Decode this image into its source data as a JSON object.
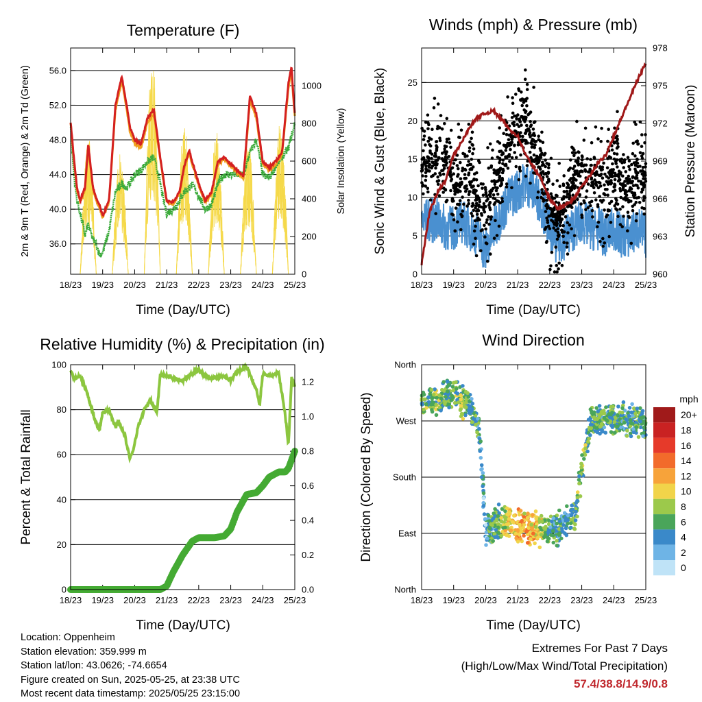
{
  "x_ticks": [
    "18/23",
    "19/23",
    "20/23",
    "21/23",
    "22/23",
    "23/23",
    "24/23",
    "25/23"
  ],
  "x_label": "Time (Day/UTC)",
  "colors": {
    "t2m": "#d42020",
    "t9m": "#f0a020",
    "td": "#3aaa3a",
    "solar": "#f5d94a",
    "wind": "#4a90d0",
    "gust": "#000000",
    "pressure": "#a01818",
    "rh": "#8cc63f",
    "precip": "#44aa33"
  },
  "chart_data": [
    {
      "type": "line",
      "id": "temp",
      "title": "Temperature (F)",
      "ylabel": "2m & 9m T (Red, Orange) & 2m Td (Green)",
      "y2label": "Solar Insolation (Yellow)",
      "ylim": [
        32.5,
        58.6
      ],
      "y_ticks": [
        "36.0",
        "40.0",
        "44.0",
        "48.0",
        "52.0",
        "56.0"
      ],
      "y2lim": [
        0,
        1200
      ],
      "y2_ticks": [
        "0",
        "200",
        "400",
        "600",
        "800",
        "1000"
      ],
      "grid": true,
      "x": [
        0,
        0.1,
        0.2,
        0.3,
        0.45,
        0.55,
        0.7,
        0.8,
        0.9,
        1.0,
        1.2,
        1.4,
        1.6,
        1.75,
        1.85,
        2.0,
        2.2,
        2.4,
        2.6,
        2.8,
        2.9,
        3.0,
        3.2,
        3.4,
        3.55,
        3.7,
        3.8,
        4.0,
        4.2,
        4.4,
        4.6,
        4.8,
        5.0,
        5.2,
        5.4,
        5.6,
        5.8,
        6.0,
        6.2,
        6.4,
        6.6,
        6.8,
        6.9,
        6.95,
        7.0
      ],
      "series": [
        {
          "name": "2m T",
          "values": [
            50.1,
            46.0,
            42.5,
            41.0,
            42.5,
            47.5,
            42.5,
            41.2,
            40.5,
            39.2,
            41.0,
            52.0,
            55.3,
            52.0,
            49.5,
            48.0,
            47.5,
            50.5,
            51.5,
            46.0,
            43.5,
            41.0,
            40.8,
            42.0,
            45.0,
            46.8,
            45.5,
            43.0,
            41.0,
            42.0,
            45.5,
            46.0,
            45.2,
            44.5,
            43.8,
            53.0,
            51.0,
            45.5,
            44.8,
            45.5,
            46.5,
            54.5,
            56.5,
            53.5,
            51.0
          ]
        },
        {
          "name": "9m T",
          "values": [
            50.0,
            45.8,
            42.2,
            40.8,
            42.2,
            47.0,
            42.3,
            41.0,
            40.2,
            39.0,
            40.8,
            51.5,
            54.8,
            51.5,
            49.0,
            47.6,
            47.1,
            50.0,
            51.0,
            45.7,
            43.2,
            40.8,
            40.6,
            41.8,
            44.7,
            46.5,
            45.2,
            42.8,
            40.8,
            41.8,
            45.2,
            45.8,
            45.0,
            44.3,
            43.6,
            52.5,
            50.6,
            45.2,
            44.5,
            45.2,
            46.2,
            54.0,
            56.0,
            53.0,
            50.8
          ]
        },
        {
          "name": "2m Td",
          "values": [
            49.5,
            44.0,
            41.0,
            39.5,
            37.0,
            38.2,
            36.5,
            36.0,
            34.8,
            35.0,
            37.5,
            42.0,
            43.0,
            42.5,
            43.0,
            44.0,
            44.5,
            45.5,
            46.0,
            43.0,
            41.0,
            39.5,
            40.0,
            41.0,
            42.0,
            42.5,
            42.8,
            41.5,
            40.0,
            40.5,
            43.0,
            44.0,
            44.0,
            44.0,
            44.0,
            46.5,
            48.0,
            44.0,
            43.5,
            45.0,
            46.0,
            47.0,
            48.5,
            49.0,
            50.0
          ]
        }
      ],
      "solar_days": [
        0,
        1,
        2,
        3,
        4,
        5,
        6
      ],
      "solar_peaks": [
        730,
        640,
        1180,
        800,
        760,
        720,
        820
      ]
    },
    {
      "type": "scatter",
      "id": "wind",
      "title": "Winds (mph) & Pressure (mb)",
      "ylabel": "Sonic Wind & Gust (Blue, Black)",
      "y2label": "Station Pressure (Maroon)",
      "ylim": [
        0,
        29.5
      ],
      "y_ticks": [
        "0",
        "5",
        "10",
        "15",
        "20",
        "25"
      ],
      "y2lim": [
        960,
        978
      ],
      "y2_ticks": [
        "960",
        "963",
        "966",
        "969",
        "972",
        "975",
        "978"
      ],
      "grid": true,
      "x": [
        0,
        0.25,
        0.5,
        0.75,
        1.0,
        1.25,
        1.5,
        1.75,
        2.0,
        2.25,
        2.5,
        2.75,
        3.0,
        3.25,
        3.5,
        3.75,
        4.0,
        4.25,
        4.5,
        4.75,
        5.0,
        5.25,
        5.5,
        5.75,
        6.0,
        6.25,
        6.5,
        6.75,
        7.0
      ],
      "series": [
        {
          "name": "Sonic Wind",
          "values": [
            7,
            7,
            7,
            6,
            6,
            7,
            6,
            5,
            3,
            6,
            8,
            10,
            11,
            12,
            11,
            9,
            6,
            4,
            5,
            6,
            7,
            6,
            6,
            5,
            6,
            5,
            5,
            6,
            5
          ]
        },
        {
          "name": "Gust",
          "values": [
            14,
            15,
            15,
            15,
            11,
            12,
            13,
            9,
            8,
            12,
            14,
            17,
            19,
            20,
            17,
            13,
            9,
            7,
            9,
            12,
            14,
            12,
            12,
            11,
            14,
            12,
            11,
            13,
            12
          ]
        },
        {
          "name": "Pressure",
          "values": [
            960.8,
            965,
            966.5,
            967.5,
            969.5,
            970.5,
            971.7,
            972.5,
            972.8,
            973.0,
            972.3,
            971.5,
            971.0,
            969.5,
            968.5,
            967.5,
            966.0,
            965.2,
            965.5,
            966.0,
            967.0,
            967.8,
            968.8,
            969.5,
            971.0,
            972.5,
            974.0,
            975.5,
            976.8
          ]
        }
      ]
    },
    {
      "type": "line",
      "id": "rh",
      "title": "Relative Humidity (%) & Precipitation (in)",
      "ylabel": "Percent & Total Rainfall",
      "ylim": [
        0,
        100
      ],
      "y_ticks": [
        "0",
        "20",
        "40",
        "60",
        "80",
        "100"
      ],
      "y2lim": [
        0,
        1.3
      ],
      "y2_ticks": [
        "0.0",
        "0.2",
        "0.4",
        "0.6",
        "0.8",
        "1.0",
        "1.2"
      ],
      "grid": true,
      "x": [
        0,
        0.1,
        0.3,
        0.5,
        0.75,
        0.9,
        1.0,
        1.2,
        1.4,
        1.5,
        1.7,
        1.85,
        1.95,
        2.1,
        2.3,
        2.5,
        2.7,
        2.8,
        3.0,
        3.2,
        3.5,
        3.8,
        4.0,
        4.2,
        4.5,
        4.8,
        5.0,
        5.2,
        5.5,
        5.8,
        5.9,
        6.0,
        6.2,
        6.5,
        6.7,
        6.8,
        6.9,
        7.0
      ],
      "series": [
        {
          "name": "RH",
          "values": [
            98,
            94,
            95,
            88,
            76,
            71,
            79,
            80,
            72,
            75,
            68,
            58,
            62,
            72,
            80,
            84,
            79,
            96,
            95,
            94,
            93,
            96,
            98,
            95,
            94,
            95,
            93,
            97,
            99,
            89,
            82,
            96,
            95,
            96,
            78,
            64,
            94,
            90
          ]
        },
        {
          "name": "Total Precipitation",
          "values": [
            0,
            0,
            0,
            0,
            0,
            0,
            0,
            0,
            0,
            0,
            0,
            0,
            0,
            0,
            0,
            0,
            0,
            0,
            0.02,
            0.1,
            0.2,
            0.28,
            0.3,
            0.3,
            0.3,
            0.31,
            0.35,
            0.45,
            0.55,
            0.56,
            0.58,
            0.6,
            0.65,
            0.68,
            0.68,
            0.7,
            0.75,
            0.8
          ]
        }
      ]
    },
    {
      "type": "scatter",
      "id": "dir",
      "title": "Wind Direction",
      "ylabel": "Direction (Colored By Speed)",
      "ylim": [
        0,
        360
      ],
      "y_ticks": [
        "North",
        "East",
        "South",
        "West",
        "North"
      ],
      "grid": true,
      "colorbar": {
        "unit": "mph",
        "labels": [
          "20+",
          "18",
          "16",
          "14",
          "12",
          "10",
          "8",
          "6",
          "4",
          "2",
          "0"
        ],
        "colors": [
          "#a01a1a",
          "#c92222",
          "#e63a2a",
          "#f26b2b",
          "#f7a33a",
          "#f1d44a",
          "#9cc94b",
          "#4aa55a",
          "#3a89c9",
          "#6eb4e6",
          "#bfe3f7"
        ]
      },
      "x": [
        0,
        0.5,
        1.0,
        1.5,
        1.8,
        2.0,
        2.3,
        2.6,
        3.0,
        3.4,
        3.8,
        4.2,
        4.5,
        4.8,
        5.0,
        5.3,
        5.6,
        6.0,
        6.5,
        7.0
      ],
      "series": [
        {
          "name": "Direction",
          "values": [
            300,
            305,
            310,
            295,
            255,
            95,
            105,
            110,
            102,
            100,
            98,
            95,
            110,
            120,
            195,
            270,
            268,
            272,
            270,
            265
          ]
        }
      ]
    }
  ],
  "info": {
    "location": "Location: Oppenheim",
    "elevation": "Station elevation: 359.999 m",
    "latlon": "Station lat/lon: 43.0626; -74.6654",
    "created": "Figure created on Sun, 2025-05-25, at 23:38 UTC",
    "timestamp": "Most recent data timestamp: 2025/05/25 23:15:00"
  },
  "extremes": {
    "title": "Extremes For Past 7 Days",
    "subtitle": "(High/Low/Max Wind/Total Precipitation)",
    "values": "57.4/38.8/14.9/0.8"
  }
}
